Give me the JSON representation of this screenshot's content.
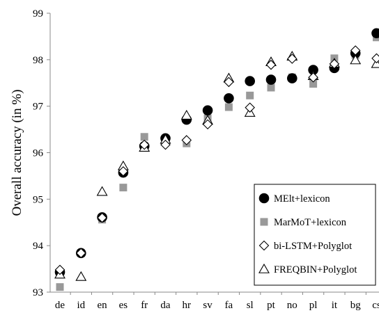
{
  "chart_data": {
    "type": "scatter",
    "ylabel": "Overall accuracy (in %)",
    "xlabel": "",
    "ylim": [
      93,
      99
    ],
    "yticks": [
      93,
      94,
      95,
      96,
      97,
      98,
      99
    ],
    "grid": false,
    "legend_position": "bottom-right",
    "categories": [
      "de",
      "id",
      "en",
      "es",
      "fr",
      "da",
      "hr",
      "sv",
      "fa",
      "sl",
      "pt",
      "no",
      "pl",
      "it",
      "bg",
      "cs"
    ],
    "series": [
      {
        "name": "MElt+lexicon",
        "marker": "filled-circle",
        "color": "#000000",
        "values": [
          93.43,
          93.84,
          94.61,
          95.57,
          96.14,
          96.31,
          96.71,
          96.91,
          97.17,
          97.54,
          97.57,
          97.6,
          97.78,
          97.82,
          98.14,
          98.57
        ]
      },
      {
        "name": "MarMoT+lexicon",
        "marker": "filled-square",
        "color": "#999999",
        "values": [
          93.11,
          93.84,
          94.56,
          95.25,
          96.34,
          96.24,
          96.2,
          96.74,
          96.98,
          97.23,
          97.4,
          97.62,
          97.48,
          98.03,
          98.1,
          98.48
        ]
      },
      {
        "name": "bi-LSTM+Polyglot",
        "marker": "open-diamond",
        "color": "#000000",
        "values": [
          93.48,
          93.84,
          94.6,
          95.6,
          96.17,
          96.17,
          96.27,
          96.61,
          97.52,
          96.97,
          97.89,
          98.02,
          97.62,
          97.91,
          98.2,
          98.03
        ]
      },
      {
        "name": "FREQBIN+Polyglot",
        "marker": "open-triangle",
        "color": "#000000",
        "values": [
          93.38,
          93.33,
          95.16,
          95.71,
          96.11,
          96.28,
          96.8,
          96.69,
          97.6,
          96.86,
          97.95,
          98.07,
          97.65,
          97.92,
          97.99,
          97.91
        ]
      }
    ]
  }
}
